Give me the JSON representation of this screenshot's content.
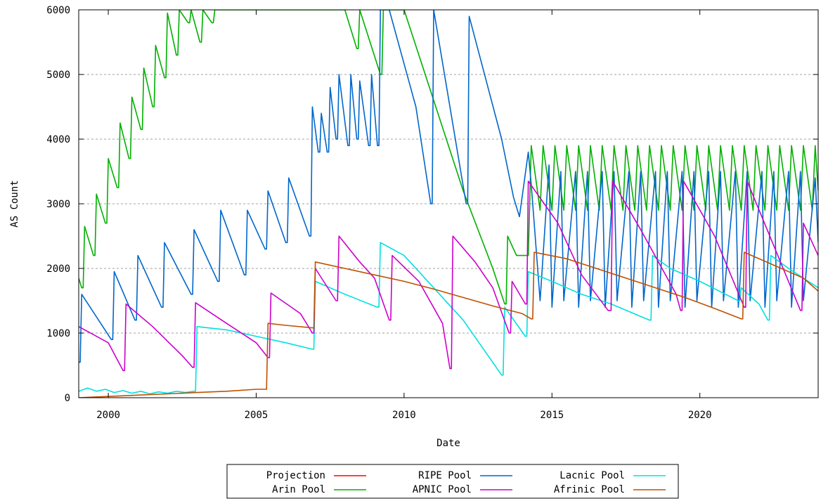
{
  "chart_data": {
    "type": "line",
    "title": "",
    "xlabel": "Date",
    "ylabel": "AS Count",
    "xlim": [
      1999.0,
      2024.0
    ],
    "ylim": [
      0,
      6000
    ],
    "x_ticks": [
      2000,
      2005,
      2010,
      2015,
      2020
    ],
    "x_tick_labels": [
      "2000",
      "2005",
      "2010",
      "2015",
      "2020"
    ],
    "y_ticks": [
      0,
      1000,
      2000,
      3000,
      4000,
      5000,
      6000
    ],
    "y_tick_labels": [
      "0",
      "1000",
      "2000",
      "3000",
      "4000",
      "5000",
      "6000"
    ],
    "grid": "horizontal-dashed",
    "legend_position": "bottom-center",
    "series": [
      {
        "name": "Projection",
        "color": "#ff0000",
        "x": [],
        "y": []
      },
      {
        "name": "RIPE Pool",
        "color": "#0066cc",
        "x": [
          1999.0,
          1999.05,
          1999.1,
          2000.1,
          2000.15,
          2000.2,
          2000.9,
          2000.95,
          2001.0,
          2001.8,
          2001.85,
          2001.9,
          2002.8,
          2002.85,
          2002.9,
          2003.7,
          2003.75,
          2003.8,
          2004.6,
          2004.65,
          2004.7,
          2005.3,
          2005.35,
          2005.4,
          2006.0,
          2006.05,
          2006.1,
          2006.8,
          2006.85,
          2006.9,
          2007.1,
          2007.15,
          2007.2,
          2007.4,
          2007.45,
          2007.5,
          2007.7,
          2007.75,
          2007.8,
          2008.1,
          2008.15,
          2008.2,
          2008.4,
          2008.45,
          2008.5,
          2008.8,
          2008.85,
          2008.9,
          2009.1,
          2009.15,
          2009.2,
          2009.4,
          2009.5,
          2010.4,
          2010.9,
          2010.95,
          2011.0,
          2012.1,
          2012.15,
          2012.2,
          2013.3,
          2013.7,
          2013.9,
          2014.2,
          2014.3,
          2014.6,
          2014.9,
          2015.0,
          2015.3,
          2015.4,
          2015.8,
          2015.9,
          2016.2,
          2016.3,
          2016.7,
          2016.8,
          2017.1,
          2017.2,
          2017.6,
          2017.7,
          2018.0,
          2018.1,
          2018.5,
          2018.6,
          2018.9,
          2019.0,
          2019.4,
          2019.5,
          2019.8,
          2019.9,
          2020.3,
          2020.4,
          2020.7,
          2020.8,
          2021.2,
          2021.3,
          2021.6,
          2021.7,
          2022.1,
          2022.2,
          2022.5,
          2022.6,
          2023.0,
          2023.1,
          2023.4,
          2023.5,
          2023.9,
          2024.0
        ],
        "y": [
          550,
          550,
          1600,
          900,
          900,
          1950,
          1200,
          1200,
          2200,
          1400,
          1400,
          2400,
          1600,
          1600,
          2600,
          1800,
          1800,
          2900,
          1900,
          1900,
          2900,
          2300,
          2300,
          3200,
          2400,
          2400,
          3400,
          2500,
          2500,
          4500,
          3800,
          3800,
          4400,
          3800,
          3800,
          4800,
          4000,
          4000,
          5000,
          3900,
          3900,
          5000,
          4000,
          4000,
          4900,
          3900,
          3900,
          5000,
          3900,
          3900,
          6000,
          6000,
          6000,
          4500,
          3000,
          3000,
          6000,
          3000,
          3000,
          5900,
          4000,
          3100,
          2800,
          3800,
          3300,
          1500,
          3600,
          1400,
          3500,
          1500,
          3500,
          1400,
          3500,
          1500,
          3500,
          1400,
          3500,
          1500,
          3500,
          1400,
          3500,
          1500,
          3500,
          1400,
          3500,
          1500,
          3500,
          1400,
          3500,
          1500,
          3500,
          1400,
          3500,
          1500,
          3500,
          1400,
          3500,
          1500,
          3500,
          1400,
          3500,
          1500,
          3500,
          1400,
          3500,
          1500,
          3400,
          2400
        ]
      },
      {
        "name": "Lacnic Pool",
        "color": "#00e0e0",
        "x": [
          1999.0,
          1999.3,
          1999.6,
          1999.9,
          2000.2,
          2000.5,
          2000.8,
          2001.1,
          2001.4,
          2001.7,
          2002.0,
          2002.3,
          2002.6,
          2002.9,
          2002.95,
          2003.0,
          2004.0,
          2005.0,
          2006.0,
          2006.9,
          2006.95,
          2007.0,
          2008.0,
          2009.1,
          2009.15,
          2009.2,
          2010.0,
          2011.0,
          2012.0,
          2013.3,
          2013.35,
          2013.4,
          2014.1,
          2014.15,
          2014.2,
          2015.0,
          2016.0,
          2017.0,
          2018.3,
          2018.35,
          2018.4,
          2019.0,
          2020.0,
          2021.3,
          2021.35,
          2021.4,
          2022.0,
          2022.3,
          2022.35,
          2022.4,
          2023.0,
          2024.0
        ],
        "y": [
          100,
          150,
          100,
          130,
          80,
          110,
          70,
          100,
          60,
          90,
          70,
          100,
          80,
          100,
          100,
          1100,
          1050,
          950,
          850,
          750,
          750,
          1800,
          1600,
          1400,
          1400,
          2400,
          2200,
          1700,
          1200,
          350,
          350,
          1400,
          950,
          950,
          1950,
          1800,
          1600,
          1450,
          1200,
          1200,
          2200,
          2000,
          1800,
          1500,
          1500,
          1700,
          1450,
          1200,
          1200,
          2200,
          2000,
          1700
        ]
      },
      {
        "name": "Arin Pool",
        "color": "#00b000",
        "x": [
          1999.0,
          1999.1,
          1999.15,
          1999.2,
          1999.5,
          1999.55,
          1999.6,
          1999.9,
          1999.95,
          2000.0,
          2000.3,
          2000.35,
          2000.4,
          2000.7,
          2000.75,
          2000.8,
          2001.1,
          2001.15,
          2001.2,
          2001.5,
          2001.55,
          2001.6,
          2001.9,
          2001.95,
          2002.0,
          2002.3,
          2002.35,
          2002.4,
          2002.7,
          2002.75,
          2002.8,
          2003.1,
          2003.15,
          2003.2,
          2003.5,
          2003.55,
          2003.6,
          2003.8,
          2008.0,
          2008.4,
          2008.45,
          2008.5,
          2009.2,
          2009.25,
          2009.3,
          2010.0,
          2011.0,
          2012.0,
          2013.0,
          2013.4,
          2013.45,
          2013.5,
          2013.8,
          2013.85,
          2014.2,
          2014.3,
          2014.6,
          2014.7,
          2015.0,
          2015.1,
          2015.4,
          2015.5,
          2015.8,
          2015.9,
          2016.2,
          2016.3,
          2016.6,
          2016.7,
          2017.0,
          2017.1,
          2017.4,
          2017.5,
          2017.8,
          2017.9,
          2018.2,
          2018.3,
          2018.6,
          2018.7,
          2019.0,
          2019.1,
          2019.4,
          2019.5,
          2019.8,
          2019.9,
          2020.2,
          2020.3,
          2020.6,
          2020.7,
          2021.0,
          2021.1,
          2021.4,
          2021.5,
          2021.8,
          2021.9,
          2022.2,
          2022.3,
          2022.6,
          2022.7,
          2023.0,
          2023.1,
          2023.4,
          2023.5,
          2023.8,
          2023.9,
          2024.0
        ],
        "y": [
          1850,
          1700,
          1700,
          2650,
          2200,
          2200,
          3150,
          2700,
          2700,
          3700,
          3250,
          3250,
          4250,
          3700,
          3700,
          4650,
          4150,
          4150,
          5100,
          4500,
          4500,
          5450,
          4950,
          4950,
          5950,
          5300,
          5300,
          6000,
          5800,
          5800,
          6000,
          5500,
          5500,
          6000,
          5800,
          5800,
          6000,
          6000,
          6000,
          5400,
          5400,
          6000,
          5000,
          5000,
          6000,
          6000,
          4600,
          3200,
          2000,
          1450,
          1450,
          2500,
          2200,
          2200,
          2200,
          3900,
          2900,
          3900,
          2900,
          3900,
          2900,
          3900,
          2900,
          3900,
          2900,
          3900,
          2900,
          3900,
          2900,
          3900,
          2900,
          3900,
          2900,
          3900,
          2900,
          3900,
          2900,
          3900,
          2900,
          3900,
          2900,
          3900,
          2900,
          3900,
          2900,
          3900,
          2900,
          3900,
          2900,
          3900,
          2900,
          3900,
          2900,
          3900,
          2900,
          3900,
          2900,
          3900,
          2900,
          3900,
          2900,
          3900,
          2900,
          3900,
          3200
        ]
      },
      {
        "name": "APNIC Pool",
        "color": "#cc00cc",
        "x": [
          1999.0,
          2000.0,
          2000.5,
          2000.55,
          2000.6,
          2001.5,
          2002.5,
          2002.85,
          2002.9,
          2002.95,
          2004.0,
          2005.0,
          2005.4,
          2005.45,
          2005.5,
          2006.5,
          2006.9,
          2006.95,
          2007.0,
          2007.7,
          2007.75,
          2007.8,
          2008.5,
          2009.0,
          2009.5,
          2009.55,
          2009.6,
          2010.5,
          2011.3,
          2011.55,
          2011.6,
          2011.65,
          2012.4,
          2013.0,
          2013.55,
          2013.6,
          2013.65,
          2014.1,
          2014.15,
          2014.2,
          2015.2,
          2016.0,
          2016.9,
          2017.0,
          2017.05,
          2018.0,
          2019.2,
          2019.35,
          2019.4,
          2019.45,
          2020.5,
          2021.5,
          2021.55,
          2021.6,
          2023.4,
          2023.45,
          2023.5,
          2024.0
        ],
        "y": [
          1100,
          850,
          420,
          420,
          1450,
          1100,
          650,
          470,
          470,
          1470,
          1150,
          850,
          620,
          620,
          1620,
          1300,
          1000,
          1000,
          2000,
          1500,
          1500,
          2500,
          2100,
          1850,
          1200,
          1200,
          2200,
          1800,
          1150,
          450,
          450,
          2500,
          2100,
          1700,
          1000,
          1000,
          1800,
          1450,
          1450,
          3350,
          2700,
          1900,
          1350,
          1350,
          3350,
          2600,
          1600,
          1350,
          1350,
          3350,
          2500,
          1400,
          1400,
          3350,
          1350,
          1350,
          2700,
          2200
        ]
      },
      {
        "name": "Afrinic Pool",
        "color": "#c05000",
        "x": [
          1999.0,
          2000.0,
          2001.0,
          2002.0,
          2003.0,
          2004.0,
          2005.0,
          2005.3,
          2005.35,
          2005.4,
          2006.0,
          2006.9,
          2006.95,
          2007.0,
          2008.0,
          2009.0,
          2010.0,
          2011.0,
          2012.0,
          2013.0,
          2014.0,
          2014.3,
          2014.35,
          2014.4,
          2015.5,
          2016.5,
          2017.5,
          2018.5,
          2019.5,
          2020.5,
          2021.4,
          2021.45,
          2021.5,
          2022.5,
          2023.5,
          2024.0
        ],
        "y": [
          0,
          20,
          40,
          60,
          80,
          100,
          130,
          130,
          130,
          1150,
          1120,
          1080,
          1080,
          2100,
          2000,
          1900,
          1800,
          1680,
          1550,
          1420,
          1300,
          1220,
          1220,
          2250,
          2150,
          2000,
          1850,
          1700,
          1550,
          1380,
          1220,
          1220,
          2250,
          2050,
          1850,
          1650
        ]
      }
    ]
  }
}
